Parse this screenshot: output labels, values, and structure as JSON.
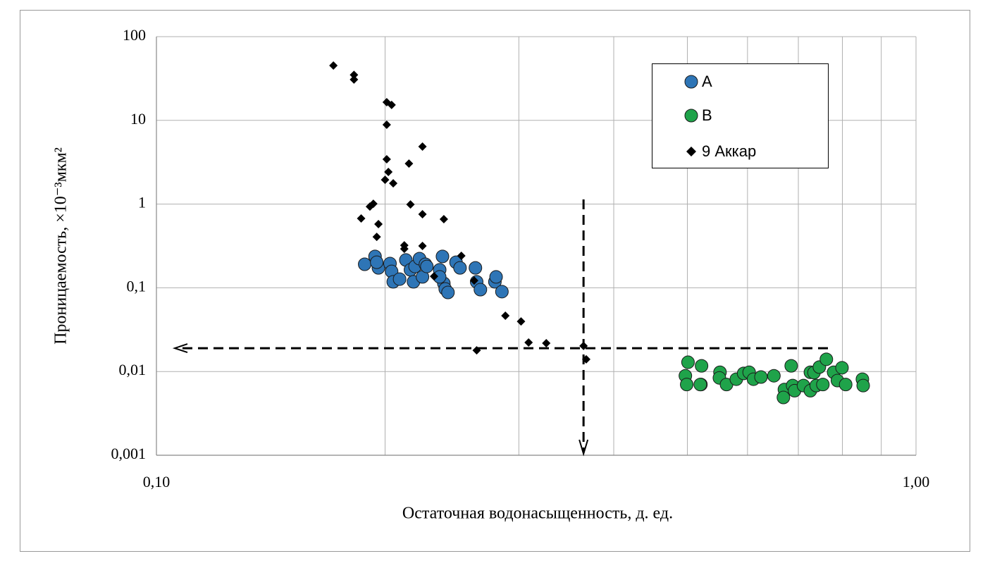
{
  "chart_data": {
    "type": "scatter",
    "x_label": "Остаточная водонасыщенность, д. ед.",
    "y_label": "Проницаемость, ×10⁻³мкм²",
    "x_log": true,
    "y_log": true,
    "grid": true,
    "legend_position": "upper right",
    "xlim": [
      0.1,
      1.0
    ],
    "xticks": [
      {
        "value": 0.1,
        "label": "0,10"
      },
      {
        "value": 1.0,
        "label": "1,00"
      }
    ],
    "x_minor_grid": [
      0.2,
      0.3,
      0.4,
      0.5,
      0.6,
      0.7,
      0.8,
      0.9
    ],
    "ylim": [
      0.001,
      100
    ],
    "yticks": [
      {
        "value": 0.001,
        "label": "0,001"
      },
      {
        "value": 0.01,
        "label": "0,01"
      },
      {
        "value": 0.1,
        "label": "0,1"
      },
      1,
      10,
      100
    ],
    "guides": {
      "x": 0.365,
      "y": 0.019
    },
    "series": [
      {
        "name": "A",
        "color": "#2e75b6",
        "marker": "circle",
        "x": [
          0.188,
          0.194,
          0.196,
          0.195,
          0.203,
          0.204,
          0.205,
          0.209,
          0.213,
          0.216,
          0.218,
          0.219,
          0.222,
          0.224,
          0.226,
          0.227,
          0.236,
          0.238,
          0.239,
          0.24,
          0.242,
          0.248,
          0.251,
          0.263,
          0.264,
          0.267,
          0.279,
          0.28,
          0.285,
          0.236
        ],
        "y": [
          0.191,
          0.237,
          0.173,
          0.202,
          0.195,
          0.157,
          0.118,
          0.127,
          0.215,
          0.164,
          0.118,
          0.18,
          0.223,
          0.135,
          0.191,
          0.18,
          0.164,
          0.237,
          0.113,
          0.097,
          0.088,
          0.202,
          0.173,
          0.173,
          0.118,
          0.095,
          0.118,
          0.135,
          0.09,
          0.135
        ]
      },
      {
        "name": "B",
        "color": "#1fa34a",
        "marker": "circle",
        "x": [
          0.501,
          0.497,
          0.499,
          0.521,
          0.522,
          0.52,
          0.552,
          0.551,
          0.563,
          0.58,
          0.593,
          0.603,
          0.611,
          0.625,
          0.65,
          0.671,
          0.669,
          0.685,
          0.688,
          0.692,
          0.711,
          0.726,
          0.726,
          0.734,
          0.739,
          0.746,
          0.754,
          0.762,
          0.779,
          0.788,
          0.799,
          0.808,
          0.85,
          0.852
        ],
        "y": [
          0.0129,
          0.0089,
          0.007,
          0.007,
          0.0117,
          0.007,
          0.0098,
          0.0084,
          0.007,
          0.0081,
          0.0095,
          0.0098,
          0.0081,
          0.0086,
          0.0089,
          0.0061,
          0.0049,
          0.0117,
          0.0068,
          0.0059,
          0.0068,
          0.0059,
          0.0098,
          0.0097,
          0.0068,
          0.0113,
          0.007,
          0.014,
          0.0098,
          0.0078,
          0.0111,
          0.007,
          0.0081,
          0.0068
        ]
      },
      {
        "name": "9 Аккар",
        "color": "#000000",
        "marker": "diamond",
        "x": [
          0.171,
          0.182,
          0.182,
          0.201,
          0.204,
          0.201,
          0.201,
          0.202,
          0.2,
          0.205,
          0.215,
          0.224,
          0.216,
          0.224,
          0.193,
          0.191,
          0.186,
          0.196,
          0.195,
          0.212,
          0.212,
          0.224,
          0.239,
          0.252,
          0.232,
          0.262,
          0.264,
          0.288,
          0.302,
          0.309,
          0.326,
          0.365,
          0.368
        ],
        "y": [
          45.2,
          34.9,
          30.7,
          16.5,
          15.3,
          8.87,
          3.43,
          2.42,
          1.95,
          1.77,
          3.05,
          4.86,
          0.99,
          0.757,
          1.01,
          0.935,
          0.674,
          0.577,
          0.406,
          0.322,
          0.292,
          0.316,
          0.661,
          0.241,
          0.137,
          0.122,
          0.0179,
          0.0464,
          0.0397,
          0.0222,
          0.0218,
          0.0202,
          0.014
        ]
      }
    ]
  }
}
